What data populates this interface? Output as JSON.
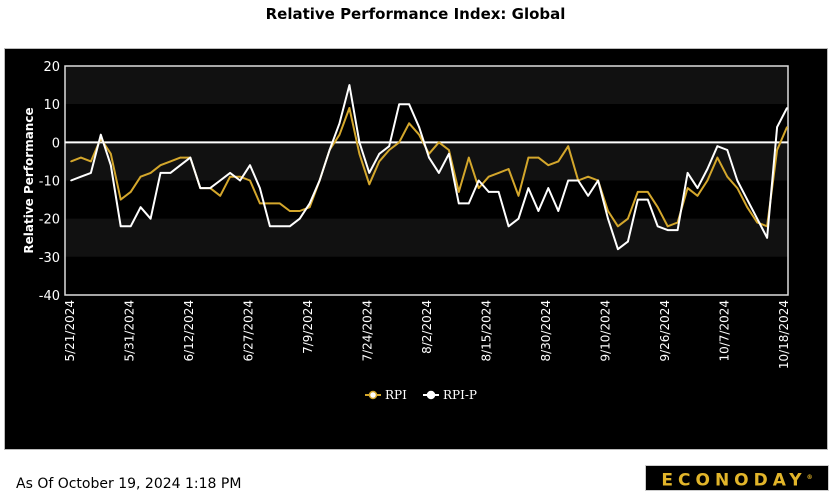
{
  "title": "Relative Performance Index: Global",
  "as_of": "As Of October 19, 2024 1:18 PM",
  "logo": {
    "text": "ECONODAY",
    "mark": "®"
  },
  "chart_data": {
    "type": "line",
    "title": "Relative Performance Index: Global",
    "xlabel": "",
    "ylabel": "Relative Performance",
    "ylim": [
      -40,
      20
    ],
    "yticks": [
      20,
      10,
      0,
      -10,
      -20,
      -30,
      -40
    ],
    "xticks": [
      "5/21/2024",
      "5/31/2024",
      "6/12/2024",
      "6/27/2024",
      "7/9/2024",
      "7/24/2024",
      "8/2/2024",
      "8/15/2024",
      "8/30/2024",
      "9/10/2024",
      "9/26/2024",
      "10/7/2024",
      "10/18/2024"
    ],
    "legend_position": "bottom-center",
    "grid": "alternating bands",
    "series": [
      {
        "name": "RPI",
        "color": "#d4a72c",
        "values": [
          -5,
          -4,
          -5,
          1,
          -3,
          -15,
          -13,
          -9,
          -8,
          -6,
          -5,
          -4,
          -4,
          -12,
          -12,
          -14,
          -9,
          -9,
          -10,
          -16,
          -16,
          -16,
          -18,
          -18,
          -17,
          -10,
          -2,
          2,
          9,
          -3,
          -11,
          -5,
          -2,
          0,
          5,
          2,
          -3,
          0,
          -2,
          -13,
          -4,
          -12,
          -9,
          -8,
          -7,
          -14,
          -4,
          -4,
          -6,
          -5,
          -1,
          -10,
          -9,
          -10,
          -18,
          -22,
          -20,
          -13,
          -13,
          -17,
          -22,
          -21,
          -12,
          -14,
          -10,
          -4,
          -9,
          -12,
          -17,
          -21,
          -22,
          -2,
          4
        ]
      },
      {
        "name": "RPI-P",
        "color": "#ffffff",
        "values": [
          -10,
          -9,
          -8,
          2,
          -6,
          -22,
          -22,
          -17,
          -20,
          -8,
          -8,
          -6,
          -4,
          -12,
          -12,
          -10,
          -8,
          -10,
          -6,
          -12,
          -22,
          -22,
          -22,
          -20,
          -16,
          -10,
          -2,
          5,
          15,
          0,
          -8,
          -3,
          -1,
          10,
          10,
          4,
          -4,
          -8,
          -3,
          -16,
          -16,
          -10,
          -13,
          -13,
          -22,
          -20,
          -12,
          -18,
          -12,
          -18,
          -10,
          -10,
          -14,
          -10,
          -20,
          -28,
          -26,
          -15,
          -15,
          -22,
          -23,
          -23,
          -8,
          -12,
          -7,
          -1,
          -2,
          -10,
          -15,
          -20,
          -25,
          4,
          9
        ]
      }
    ]
  }
}
